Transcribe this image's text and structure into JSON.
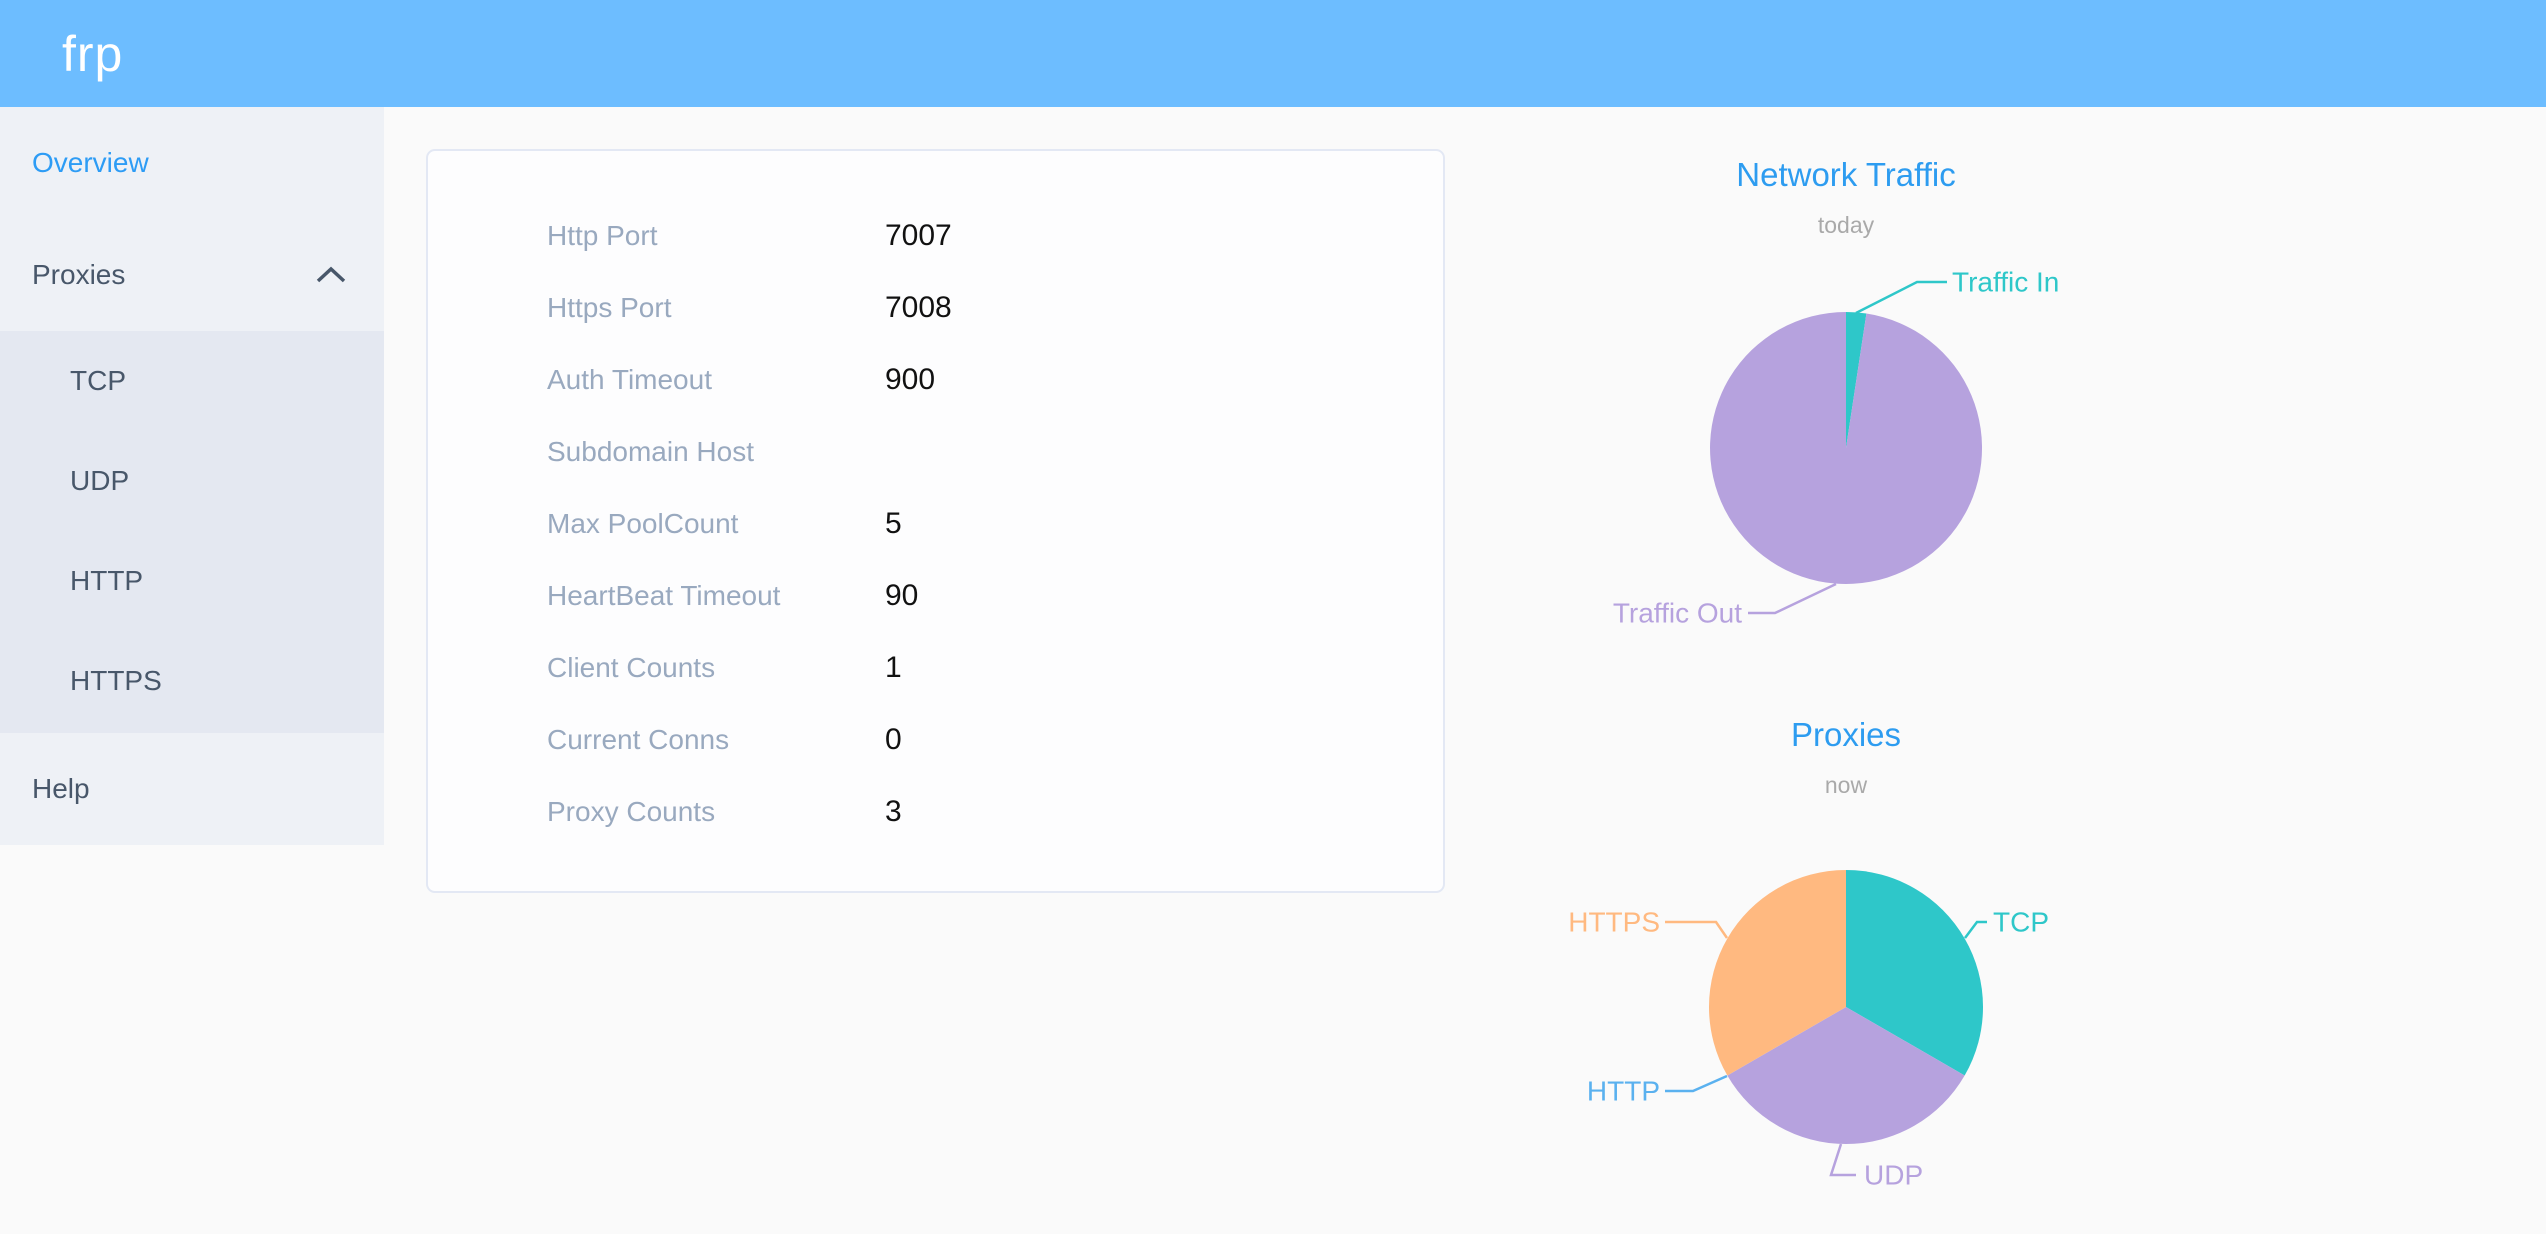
{
  "header": {
    "logo": "frp",
    "background_color": "#6dbdff"
  },
  "sidebar": {
    "items": [
      {
        "label": "Overview",
        "active": true
      },
      {
        "label": "Proxies",
        "expanded": true,
        "chevron_icon": "chevron-up",
        "children": [
          {
            "label": "TCP"
          },
          {
            "label": "UDP"
          },
          {
            "label": "HTTP"
          },
          {
            "label": "HTTPS"
          }
        ]
      },
      {
        "label": "Help"
      }
    ]
  },
  "overview": {
    "rows": [
      {
        "label": "Http Port",
        "value": "7007"
      },
      {
        "label": "Https Port",
        "value": "7008"
      },
      {
        "label": "Auth Timeout",
        "value": "900"
      },
      {
        "label": "Subdomain Host",
        "value": ""
      },
      {
        "label": "Max PoolCount",
        "value": "5"
      },
      {
        "label": "HeartBeat Timeout",
        "value": "90"
      },
      {
        "label": "Client Counts",
        "value": "1"
      },
      {
        "label": "Current Conns",
        "value": "0"
      },
      {
        "label": "Proxy Counts",
        "value": "3"
      }
    ]
  },
  "chart_data": [
    {
      "type": "pie",
      "title": "Network Traffic",
      "subtitle": "today",
      "legend_position": "none",
      "value_unit": "percent estimated from arc angles (byte totals not shown)",
      "slices": [
        {
          "name": "Traffic In",
          "value": 2.4,
          "color": "#2ec7c9"
        },
        {
          "name": "Traffic Out",
          "value": 97.6,
          "color": "#b6a2de"
        }
      ]
    },
    {
      "type": "pie",
      "title": "Proxies",
      "subtitle": "now",
      "legend_position": "none",
      "value_unit": "proxy count",
      "slices": [
        {
          "name": "TCP",
          "value": 1,
          "color": "#2ec7c9"
        },
        {
          "name": "UDP",
          "value": 1,
          "color": "#b6a2de"
        },
        {
          "name": "HTTP",
          "value": 0,
          "color": "#5ab1ef"
        },
        {
          "name": "HTTPS",
          "value": 1,
          "color": "#ffb980"
        }
      ]
    }
  ],
  "colors": {
    "header": "#6dbdff",
    "sidebar_bg": "#eef1f6",
    "submenu_bg": "#e4e8f1",
    "menu_text": "#48576a",
    "active_item": "#2d9cf5",
    "page_bg": "#fafafa",
    "card_border": "#e3e8f4",
    "config_label": "#99a9bf",
    "config_value": "#111111",
    "chart_title": "#2d9cf0",
    "chart_subtitle": "#a9a9a9"
  }
}
